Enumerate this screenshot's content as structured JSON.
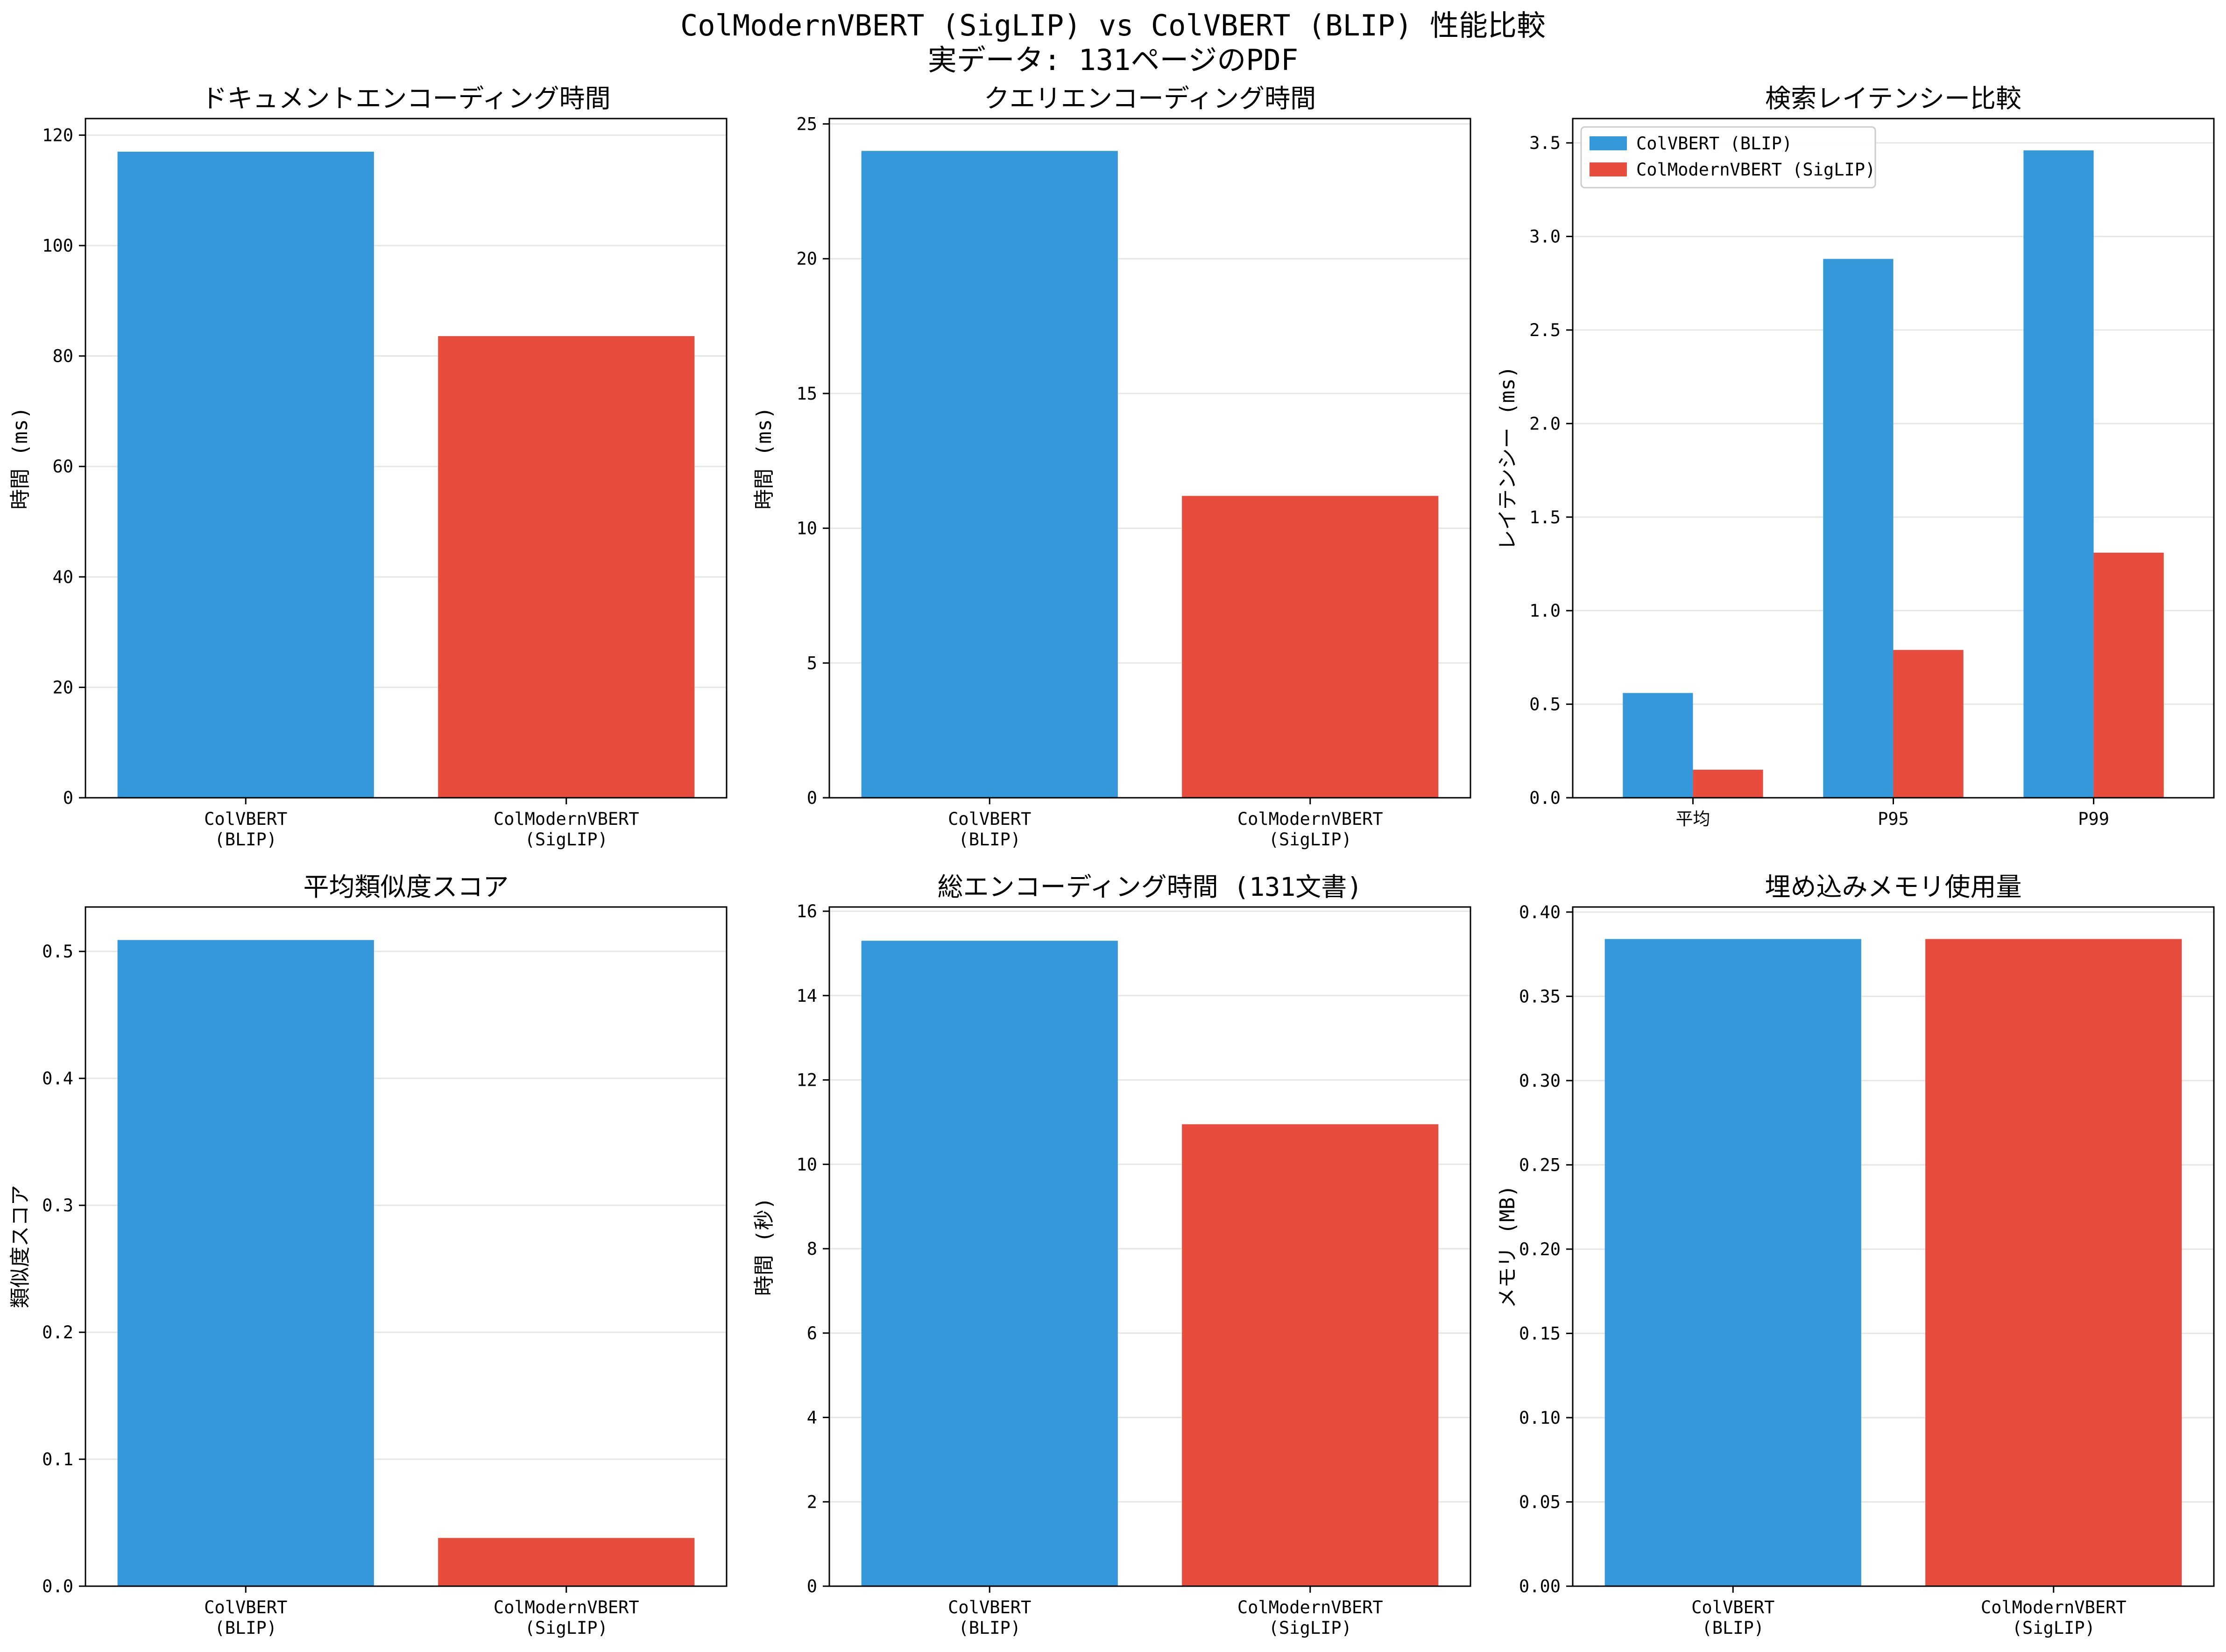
{
  "figure": {
    "title_line1": "ColModernVBERT (SigLIP) vs ColVBERT (BLIP) 性能比較",
    "title_line2": "実データ: 131ページのPDF"
  },
  "colors": {
    "colvbert": "#3498db",
    "colmodernvbert": "#e74c3c",
    "grid": "#e6e6e6",
    "axis": "#000000"
  },
  "chart_data": [
    {
      "type": "bar",
      "title": "ドキュメントエンコーディング時間",
      "xlabel": "",
      "ylabel": "時間 (ms)",
      "categories": [
        "ColVBERT\n(BLIP)",
        "ColModernVBERT\n(SigLIP)"
      ],
      "values": [
        117,
        83.6
      ],
      "ylim": [
        0,
        123
      ],
      "yticks": [
        0,
        20,
        40,
        60,
        80,
        100,
        120
      ],
      "grid": true
    },
    {
      "type": "bar",
      "title": "クエリエンコーディング時間",
      "xlabel": "",
      "ylabel": "時間 (ms)",
      "categories": [
        "ColVBERT\n(BLIP)",
        "ColModernVBERT\n(SigLIP)"
      ],
      "values": [
        24.0,
        11.2
      ],
      "ylim": [
        0,
        25.2
      ],
      "yticks": [
        0,
        5,
        10,
        15,
        20,
        25
      ],
      "grid": true
    },
    {
      "type": "bar",
      "title": "検索レイテンシー比較",
      "xlabel": "",
      "ylabel": "レイテンシー (ms)",
      "categories": [
        "平均",
        "P95",
        "P99"
      ],
      "series": [
        {
          "name": "ColVBERT (BLIP)",
          "values": [
            0.56,
            2.88,
            3.46
          ]
        },
        {
          "name": "ColModernVBERT (SigLIP)",
          "values": [
            0.15,
            0.79,
            1.31
          ]
        }
      ],
      "ylim": [
        0,
        3.63
      ],
      "yticks": [
        0.0,
        0.5,
        1.0,
        1.5,
        2.0,
        2.5,
        3.0,
        3.5
      ],
      "grid": true,
      "legend": "top-left"
    },
    {
      "type": "bar",
      "title": "平均類似度スコア",
      "xlabel": "",
      "ylabel": "類似度スコア",
      "categories": [
        "ColVBERT\n(BLIP)",
        "ColModernVBERT\n(SigLIP)"
      ],
      "values": [
        0.509,
        0.038
      ],
      "ylim": [
        0,
        0.535
      ],
      "yticks": [
        0.0,
        0.1,
        0.2,
        0.3,
        0.4,
        0.5
      ],
      "grid": true
    },
    {
      "type": "bar",
      "title": "総エンコーディング時間 (131文書)",
      "xlabel": "",
      "ylabel": "時間 (秒)",
      "categories": [
        "ColVBERT\n(BLIP)",
        "ColModernVBERT\n(SigLIP)"
      ],
      "values": [
        15.3,
        10.95
      ],
      "ylim": [
        0,
        16.1
      ],
      "yticks": [
        0,
        2,
        4,
        6,
        8,
        10,
        12,
        14,
        16
      ],
      "grid": true
    },
    {
      "type": "bar",
      "title": "埋め込みメモリ使用量",
      "xlabel": "",
      "ylabel": "メモリ (MB)",
      "categories": [
        "ColVBERT\n(BLIP)",
        "ColModernVBERT\n(SigLIP)"
      ],
      "values": [
        0.384,
        0.384
      ],
      "ylim": [
        0,
        0.403
      ],
      "yticks": [
        0.0,
        0.05,
        0.1,
        0.15,
        0.2,
        0.25,
        0.3,
        0.35,
        0.4
      ],
      "grid": true
    }
  ]
}
